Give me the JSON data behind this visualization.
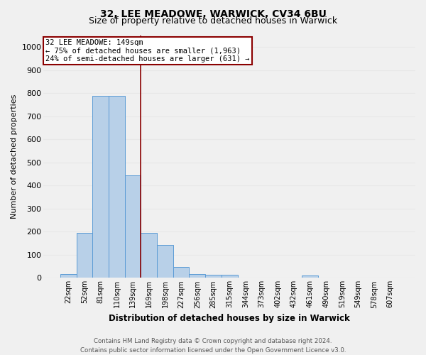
{
  "title_line1": "32, LEE MEADOWE, WARWICK, CV34 6BU",
  "title_line2": "Size of property relative to detached houses in Warwick",
  "xlabel": "Distribution of detached houses by size in Warwick",
  "ylabel": "Number of detached properties",
  "categories": [
    "22sqm",
    "52sqm",
    "81sqm",
    "110sqm",
    "139sqm",
    "169sqm",
    "198sqm",
    "227sqm",
    "256sqm",
    "285sqm",
    "315sqm",
    "344sqm",
    "373sqm",
    "402sqm",
    "432sqm",
    "461sqm",
    "490sqm",
    "519sqm",
    "549sqm",
    "578sqm",
    "607sqm"
  ],
  "values": [
    18,
    195,
    790,
    790,
    443,
    195,
    143,
    48,
    18,
    12,
    12,
    0,
    0,
    0,
    0,
    10,
    0,
    0,
    0,
    0,
    0
  ],
  "bar_color": "#b8d0e8",
  "bar_edge_color": "#5b9bd5",
  "vline_x": 4.5,
  "vline_color": "#8b0000",
  "annotation_line1": "32 LEE MEADOWE: 149sqm",
  "annotation_line2": "← 75% of detached houses are smaller (1,963)",
  "annotation_line3": "24% of semi-detached houses are larger (631) →",
  "annotation_box_facecolor": "#ffffff",
  "annotation_box_edgecolor": "#8b0000",
  "ylim": [
    0,
    1050
  ],
  "yticks": [
    0,
    100,
    200,
    300,
    400,
    500,
    600,
    700,
    800,
    900,
    1000
  ],
  "footer_line1": "Contains HM Land Registry data © Crown copyright and database right 2024.",
  "footer_line2": "Contains public sector information licensed under the Open Government Licence v3.0.",
  "bg_color": "#f0f0f0",
  "grid_color": "#e8e8e8",
  "title1_fontsize": 10,
  "title2_fontsize": 9
}
